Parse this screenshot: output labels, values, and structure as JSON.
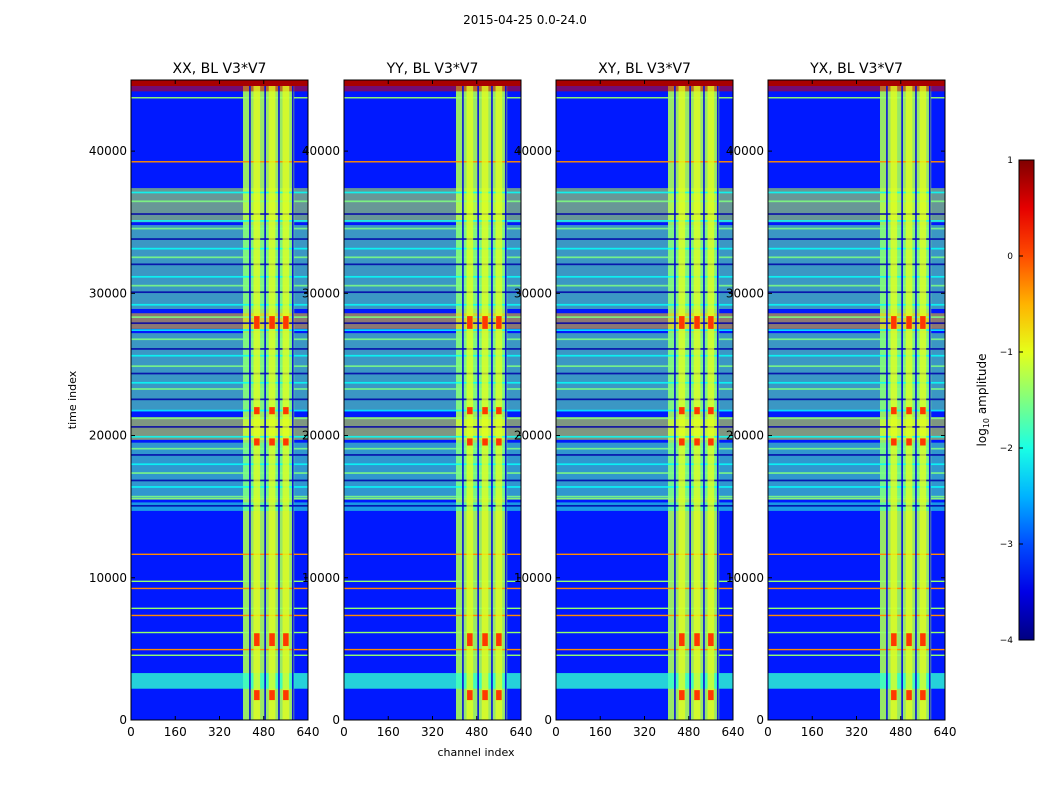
{
  "figure": {
    "suptitle": "2015-04-25 0.0-24.0",
    "xlabel": "channel index",
    "ylabel": "time index"
  },
  "chart_data": {
    "type": "heatmap",
    "colormap": "jet",
    "panels": [
      {
        "title": "XX, BL V3*V7"
      },
      {
        "title": "YY, BL V3*V7"
      },
      {
        "title": "XY, BL V3*V7"
      },
      {
        "title": "YX, BL V3*V7"
      }
    ],
    "x_range": [
      0,
      640
    ],
    "y_range": [
      0,
      45000
    ],
    "x_ticks": [
      0,
      160,
      320,
      480,
      640
    ],
    "y_ticks": [
      0,
      10000,
      20000,
      30000,
      40000
    ],
    "colorbar": {
      "label": "log10 amplitude",
      "range": [
        -4,
        1
      ],
      "ticks": [
        -4,
        -3,
        -2,
        -1,
        0,
        1
      ],
      "tick_labels": [
        "−4",
        "−3",
        "−2",
        "−1",
        "0",
        "1"
      ]
    },
    "features": {
      "rfi_channel_band": [
        405,
        590
      ],
      "bright_channel_columns": [
        455,
        510,
        560
      ],
      "rfi_time_ranges": [
        {
          "from": 14700,
          "to": 15300,
          "level": -1.9
        },
        {
          "from": 15500,
          "to": 19500,
          "level": -1.7
        },
        {
          "from": 19700,
          "to": 21300,
          "level": -1.0
        },
        {
          "from": 21800,
          "to": 27200,
          "level": -1.6
        },
        {
          "from": 27500,
          "to": 28600,
          "level": -0.6
        },
        {
          "from": 28900,
          "to": 34800,
          "level": -1.6
        },
        {
          "from": 35000,
          "to": 37400,
          "level": -1.2
        },
        {
          "from": 44200,
          "to": 45000,
          "level": 0.6
        }
      ]
    }
  }
}
